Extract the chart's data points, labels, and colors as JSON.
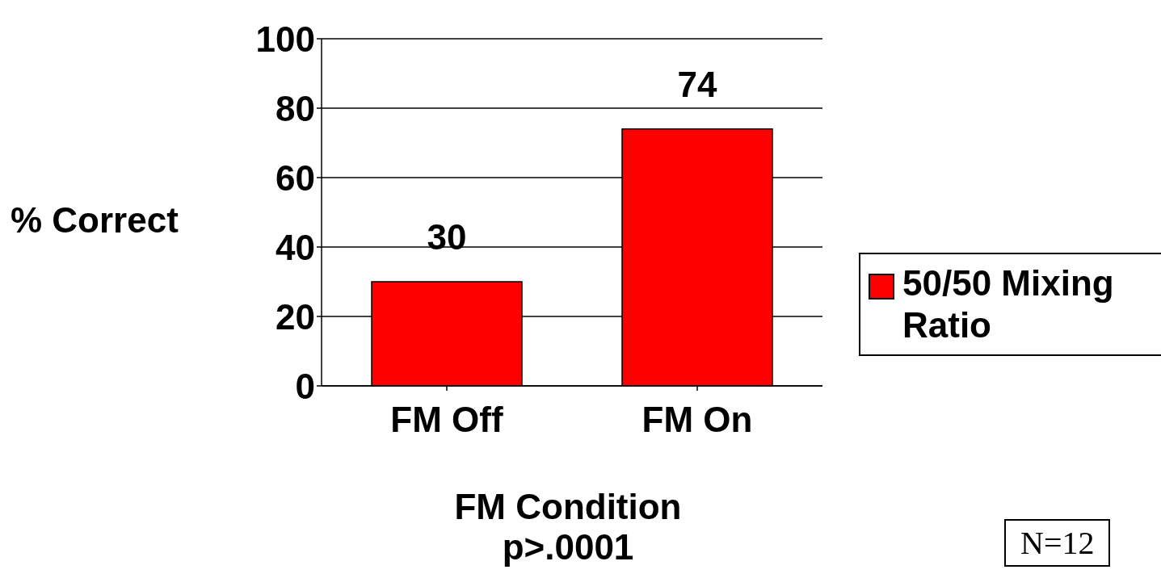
{
  "chart_data": {
    "type": "bar",
    "categories": [
      "FM Off",
      "FM On"
    ],
    "series": [
      {
        "name": "50/50 Mixing Ratio",
        "color": "#ff0000",
        "values": [
          30,
          74
        ]
      }
    ],
    "ylabel": "% Correct",
    "xlabel": "FM Condition",
    "annotations": [
      "p>.0001",
      "N=12"
    ],
    "ylim": [
      0,
      100
    ],
    "yticks": [
      0,
      20,
      40,
      60,
      80,
      100
    ],
    "grid": "y",
    "data_labels": true,
    "legend": "right"
  }
}
